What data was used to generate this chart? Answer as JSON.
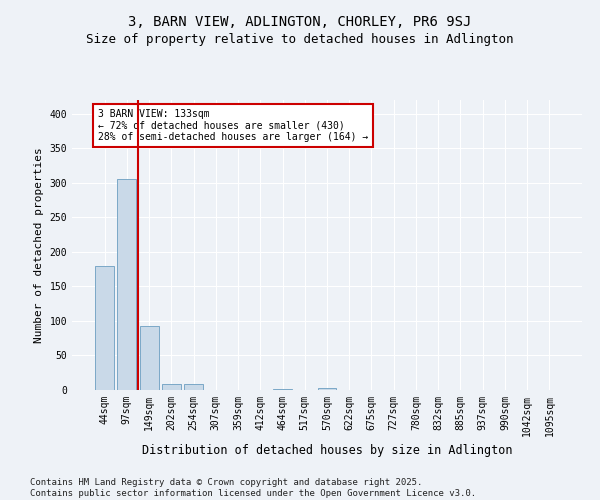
{
  "title": "3, BARN VIEW, ADLINGTON, CHORLEY, PR6 9SJ",
  "subtitle": "Size of property relative to detached houses in Adlington",
  "xlabel": "Distribution of detached houses by size in Adlington",
  "ylabel": "Number of detached properties",
  "categories": [
    "44sqm",
    "97sqm",
    "149sqm",
    "202sqm",
    "254sqm",
    "307sqm",
    "359sqm",
    "412sqm",
    "464sqm",
    "517sqm",
    "570sqm",
    "622sqm",
    "675sqm",
    "727sqm",
    "780sqm",
    "832sqm",
    "885sqm",
    "937sqm",
    "990sqm",
    "1042sqm",
    "1095sqm"
  ],
  "values": [
    180,
    305,
    92,
    8,
    9,
    0,
    0,
    0,
    2,
    0,
    3,
    0,
    0,
    0,
    0,
    0,
    0,
    0,
    0,
    0,
    0
  ],
  "bar_color": "#c9d9e8",
  "bar_edge_color": "#7aa8c7",
  "vline_color": "#cc0000",
  "annotation_text": "3 BARN VIEW: 133sqm\n← 72% of detached houses are smaller (430)\n28% of semi-detached houses are larger (164) →",
  "annotation_box_color": "#ffffff",
  "annotation_box_edge_color": "#cc0000",
  "ylim": [
    0,
    420
  ],
  "yticks": [
    0,
    50,
    100,
    150,
    200,
    250,
    300,
    350,
    400
  ],
  "background_color": "#eef2f7",
  "grid_color": "#ffffff",
  "footer": "Contains HM Land Registry data © Crown copyright and database right 2025.\nContains public sector information licensed under the Open Government Licence v3.0.",
  "title_fontsize": 10,
  "subtitle_fontsize": 9,
  "xlabel_fontsize": 8.5,
  "ylabel_fontsize": 8,
  "tick_fontsize": 7,
  "footer_fontsize": 6.5
}
